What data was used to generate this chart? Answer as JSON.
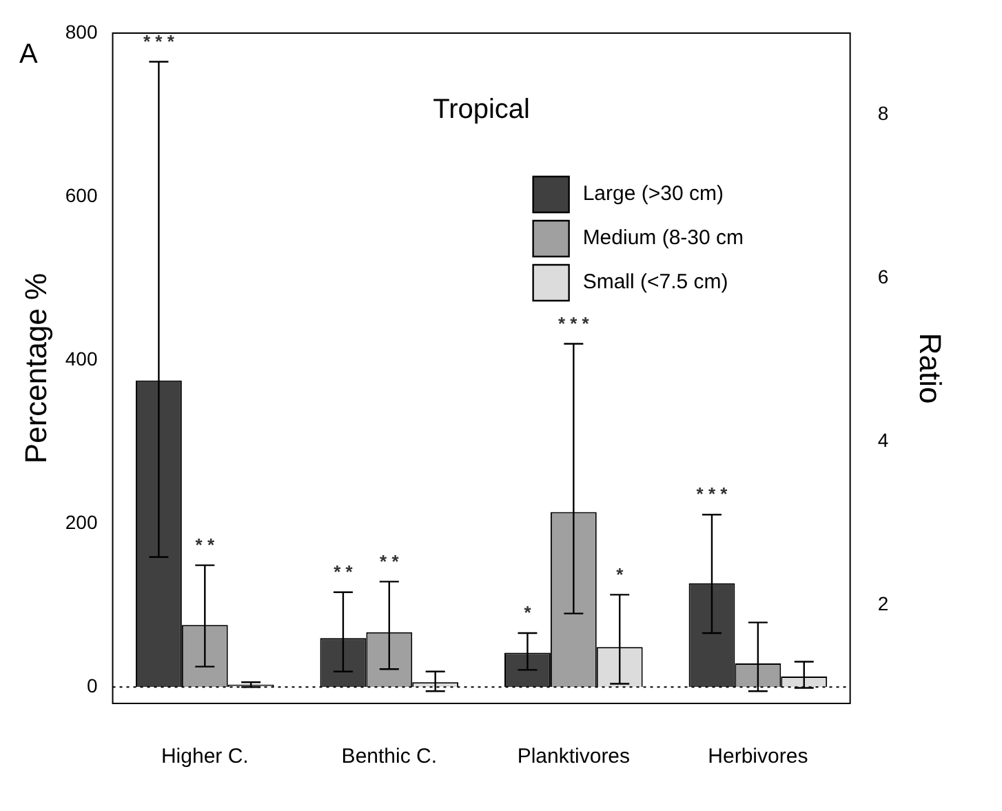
{
  "chart_data": {
    "type": "bar",
    "ylabel": "Percentage %",
    "y2label": "Ratio",
    "annotations": [
      "A",
      "Tropical",
      "* * *",
      "* *",
      "* *",
      "* *",
      "*",
      "* * *",
      "*",
      "* * *"
    ],
    "categories": [
      "Higher C.",
      "Benthic C.",
      "Planktivores",
      "Herbivores"
    ],
    "series": [
      {
        "name": "Large (>30 cm)",
        "color": "#404040",
        "values": [
          375,
          60,
          42,
          127
        ],
        "errors": [
          [
            159,
            765
          ],
          [
            19,
            116
          ],
          [
            21,
            66
          ],
          [
            66,
            211
          ]
        ]
      },
      {
        "name": "Medium (8-30 cm",
        "color": "#a0a0a0",
        "values": [
          76,
          67,
          214,
          29
        ],
        "errors": [
          [
            25,
            149
          ],
          [
            22,
            129
          ],
          [
            90,
            420
          ],
          [
            -5,
            79
          ]
        ]
      },
      {
        "name": "Small (<7.5 cm)",
        "color": "#dcdcdc",
        "values": [
          3,
          6,
          49,
          13
        ],
        "errors": [
          [
            0,
            6
          ],
          [
            -5,
            19
          ],
          [
            4,
            113
          ],
          [
            -1,
            31
          ]
        ]
      }
    ],
    "ylim": [
      -20,
      800
    ],
    "yticks": [
      0,
      200,
      400,
      600,
      800
    ],
    "y2lim": [
      0.8,
      9
    ],
    "y2ticks": [
      2,
      4,
      6,
      8
    ],
    "ref_lines": [
      {
        "axis": "y",
        "value": 0,
        "line_style": "dotted"
      }
    ],
    "legend": "top right",
    "grid": false
  }
}
